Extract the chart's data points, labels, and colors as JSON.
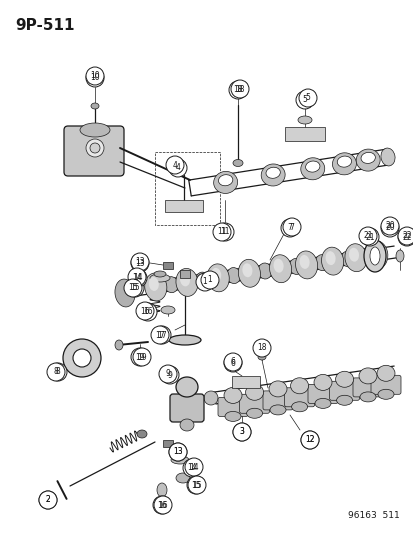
{
  "title": "9P-511",
  "footer": "96163  511",
  "bg_color": "#ffffff",
  "fg_color": "#1a1a1a",
  "title_fontsize": 11,
  "footer_fontsize": 6.5,
  "fig_width": 4.14,
  "fig_height": 5.33,
  "dpi": 100,
  "label_r": 0.018,
  "label_fontsize": 5.8,
  "lw_thin": 0.5,
  "lw_med": 0.9,
  "lw_thick": 1.4
}
